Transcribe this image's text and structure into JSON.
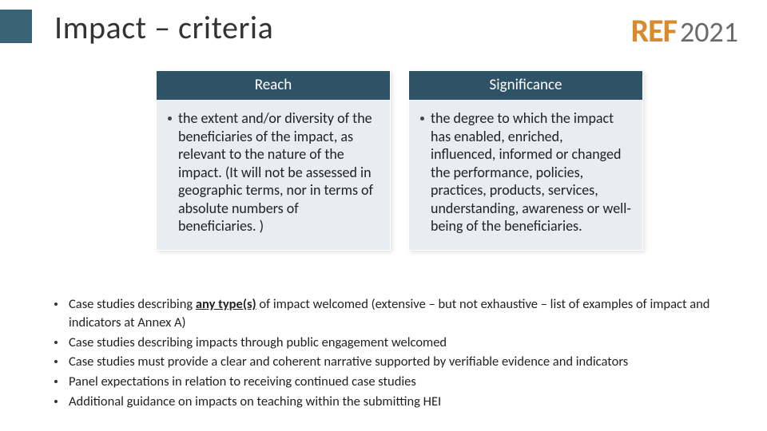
{
  "accent_color": "#3b6378",
  "title": "Impact – criteria",
  "logo": {
    "ref": "REF",
    "year": "2021",
    "ref_color": "#d98a2b",
    "year_color": "#6a6a6a"
  },
  "cards": {
    "header_bg": "#2f5366",
    "body_bg": "#e8edf1",
    "items": [
      {
        "header": "Reach",
        "body": "the extent and/or diversity of the beneficiaries of the impact, as relevant to the nature of the impact. (It will not be assessed in geographic terms, nor in terms of absolute numbers of beneficiaries. )"
      },
      {
        "header": "Significance",
        "body": "the degree to which the impact has enabled, enriched, influenced, informed or changed the performance, policies, practices, products, services, understanding, awareness or well-being of the beneficiaries."
      }
    ]
  },
  "notes": [
    {
      "pre": "Case studies describing ",
      "emph": "any type(s)",
      "post": " of impact welcomed (extensive – but not exhaustive – list of examples of impact and indicators at Annex A)"
    },
    {
      "pre": "Case studies describing impacts through public engagement welcomed",
      "emph": "",
      "post": ""
    },
    {
      "pre": "Case studies must provide a clear and coherent narrative supported by verifiable evidence and indicators",
      "emph": "",
      "post": ""
    },
    {
      "pre": "Panel expectations in relation to receiving continued case studies",
      "emph": "",
      "post": ""
    },
    {
      "pre": "Additional guidance on impacts on teaching within the submitting HEI",
      "emph": "",
      "post": ""
    }
  ]
}
